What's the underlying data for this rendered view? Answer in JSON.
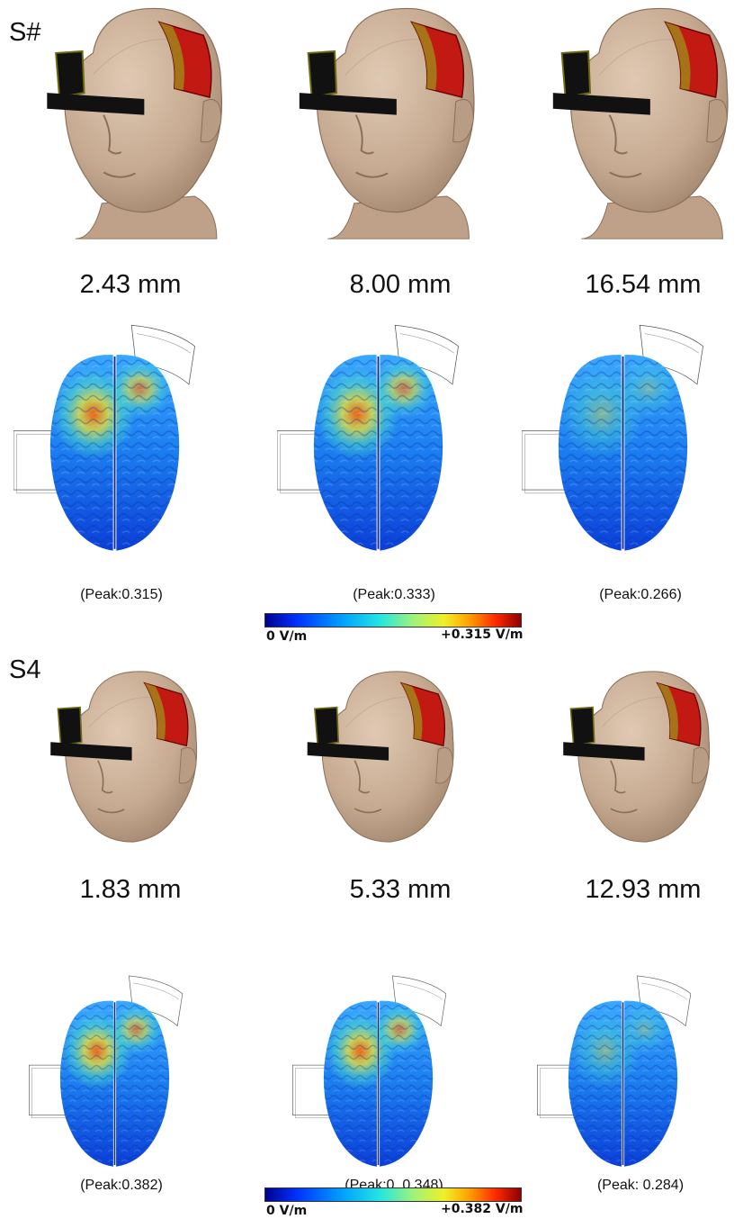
{
  "panels": [
    {
      "label": "S#",
      "thicknesses": [
        "2.43 mm",
        "8.00 mm",
        "16.54 mm"
      ],
      "peaks": [
        "(Peak:0.315)",
        "(Peak:0.333)",
        "(Peak:0.266)"
      ],
      "colorbar": {
        "min_label": "0 V/m",
        "max_label": "+0.315 V/m"
      }
    },
    {
      "label": "S4",
      "thicknesses": [
        "1.83 mm",
        "5.33 mm",
        "12.93 mm"
      ],
      "peaks": [
        "(Peak:0.382)",
        "(Peak:0. 0.348)",
        "(Peak: 0.284)"
      ],
      "colorbar": {
        "min_label": "0 V/m",
        "max_label": "+0.382 V/m"
      }
    }
  ],
  "colors": {
    "skin": "#cdb29a",
    "skin_shade": "#a58a72",
    "electrode_red": "#c21a12",
    "electrode_black": "#111111",
    "colormap": [
      "#00008f",
      "#0033ff",
      "#00a0ff",
      "#27e5e0",
      "#9ff27a",
      "#f0f028",
      "#ff9e00",
      "#ff2a00",
      "#8f0000"
    ]
  }
}
